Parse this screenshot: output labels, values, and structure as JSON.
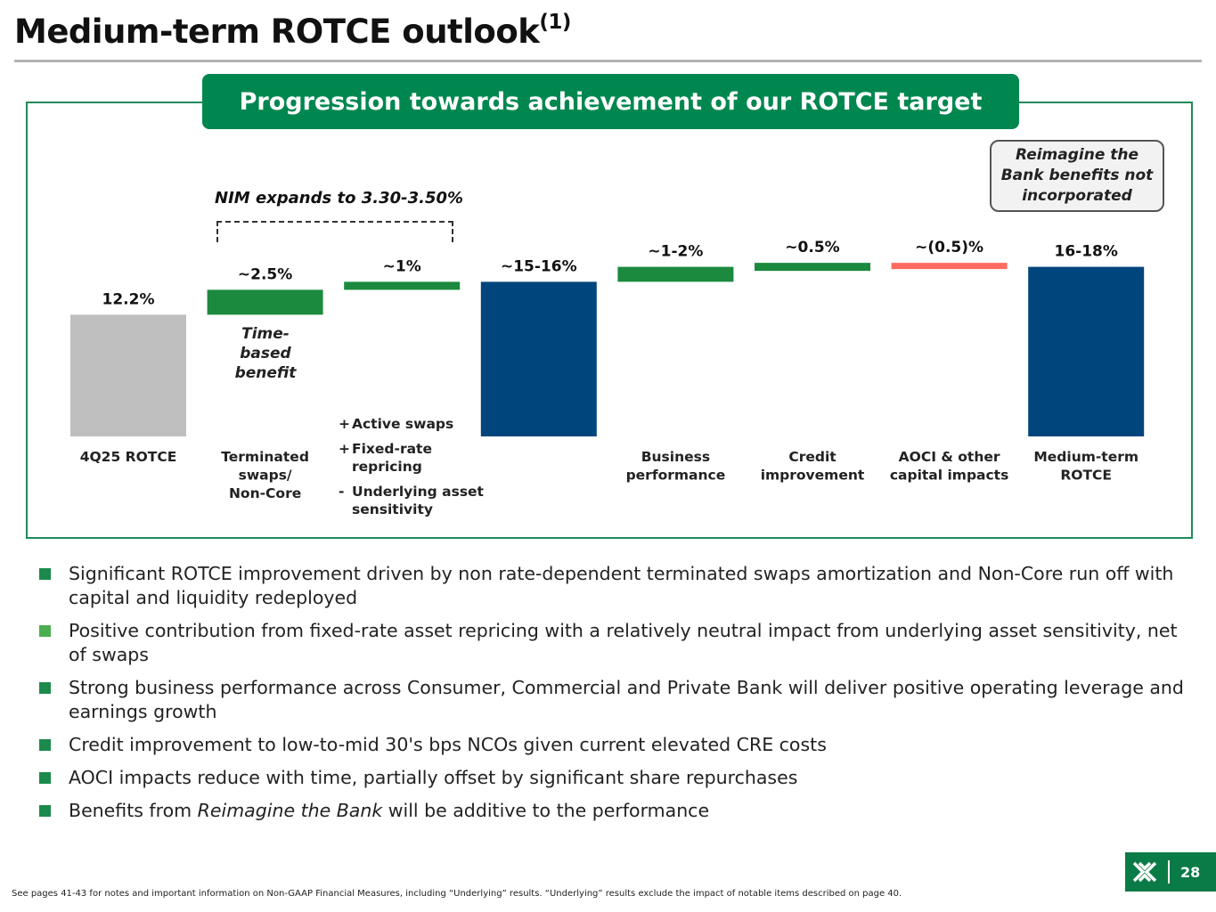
{
  "page": {
    "title": "Medium-term ROTCE outlook",
    "title_sup": "(1)",
    "banner": "Progression towards achievement of our ROTCE target",
    "note_box": "Reimagine the Bank benefits not incorporated",
    "nim_label": "NIM expands to 3.30-3.50%",
    "time_based": "Time-based benefit",
    "sub_items": [
      {
        "sign": "+",
        "text": "Active swaps"
      },
      {
        "sign": "+",
        "text": "Fixed-rate repricing"
      },
      {
        "sign": "-",
        "text": "Underlying asset sensitivity"
      }
    ],
    "bullets": [
      "Significant ROTCE improvement driven by non rate-dependent terminated swaps amortization and Non-Core run off with capital and liquidity redeployed",
      "Positive contribution from fixed-rate asset repricing with a relatively neutral impact from underlying asset sensitivity, net of swaps",
      "Strong business performance across Consumer, Commercial and Private Bank will deliver positive operating leverage and earnings growth",
      "Credit improvement to low-to-mid 30's bps NCOs given current elevated CRE costs",
      "AOCI impacts reduce with time, partially offset by significant share repurchases"
    ],
    "last_bullet": {
      "pre": "Benefits from ",
      "italic": "Reimagine the Bank",
      "post": " will be additive to the performance"
    },
    "footnote": "See pages 41-43 for notes and important information on Non-GAAP Financial Measures, including “Underlying” results. “Underlying” results exclude the impact of notable items described on page 40.",
    "page_number": "28",
    "logo_icon": "citizens-logo-icon"
  },
  "colors": {
    "green_bar": "#1b8a3e",
    "blue_bar": "#00457c",
    "gray_bar": "#bfbfbf",
    "red_bar": "#ff6b5f",
    "banner": "#00874f"
  },
  "chart_data": {
    "type": "waterfall",
    "title": "Progression towards achievement of our ROTCE target",
    "categories": [
      "4Q25 ROTCE",
      "Terminated swaps/ Non-Core",
      "",
      "",
      "Business performance",
      "Credit improvement",
      "AOCI & other capital impacts",
      "Medium-term ROTCE"
    ],
    "labels": [
      "12.2%",
      "~2.5%",
      "~1%",
      "~15-16%",
      "~1-2%",
      "~0.5%",
      "~(0.5)%",
      "16-18%"
    ],
    "bars": [
      {
        "kind": "total",
        "start": 0,
        "end": 12.2,
        "color": "gray"
      },
      {
        "kind": "delta",
        "start": 12.2,
        "end": 14.7,
        "color": "green"
      },
      {
        "kind": "delta",
        "start": 14.7,
        "end": 15.5,
        "color": "green"
      },
      {
        "kind": "total",
        "start": 0,
        "end": 15.5,
        "color": "blue"
      },
      {
        "kind": "delta",
        "start": 15.5,
        "end": 17.0,
        "color": "green"
      },
      {
        "kind": "delta",
        "start": 17.0,
        "end": 17.4,
        "color": "green"
      },
      {
        "kind": "delta",
        "start": 17.4,
        "end": 17.0,
        "color": "red"
      },
      {
        "kind": "total",
        "start": 0,
        "end": 17.0,
        "color": "blue"
      }
    ]
  }
}
